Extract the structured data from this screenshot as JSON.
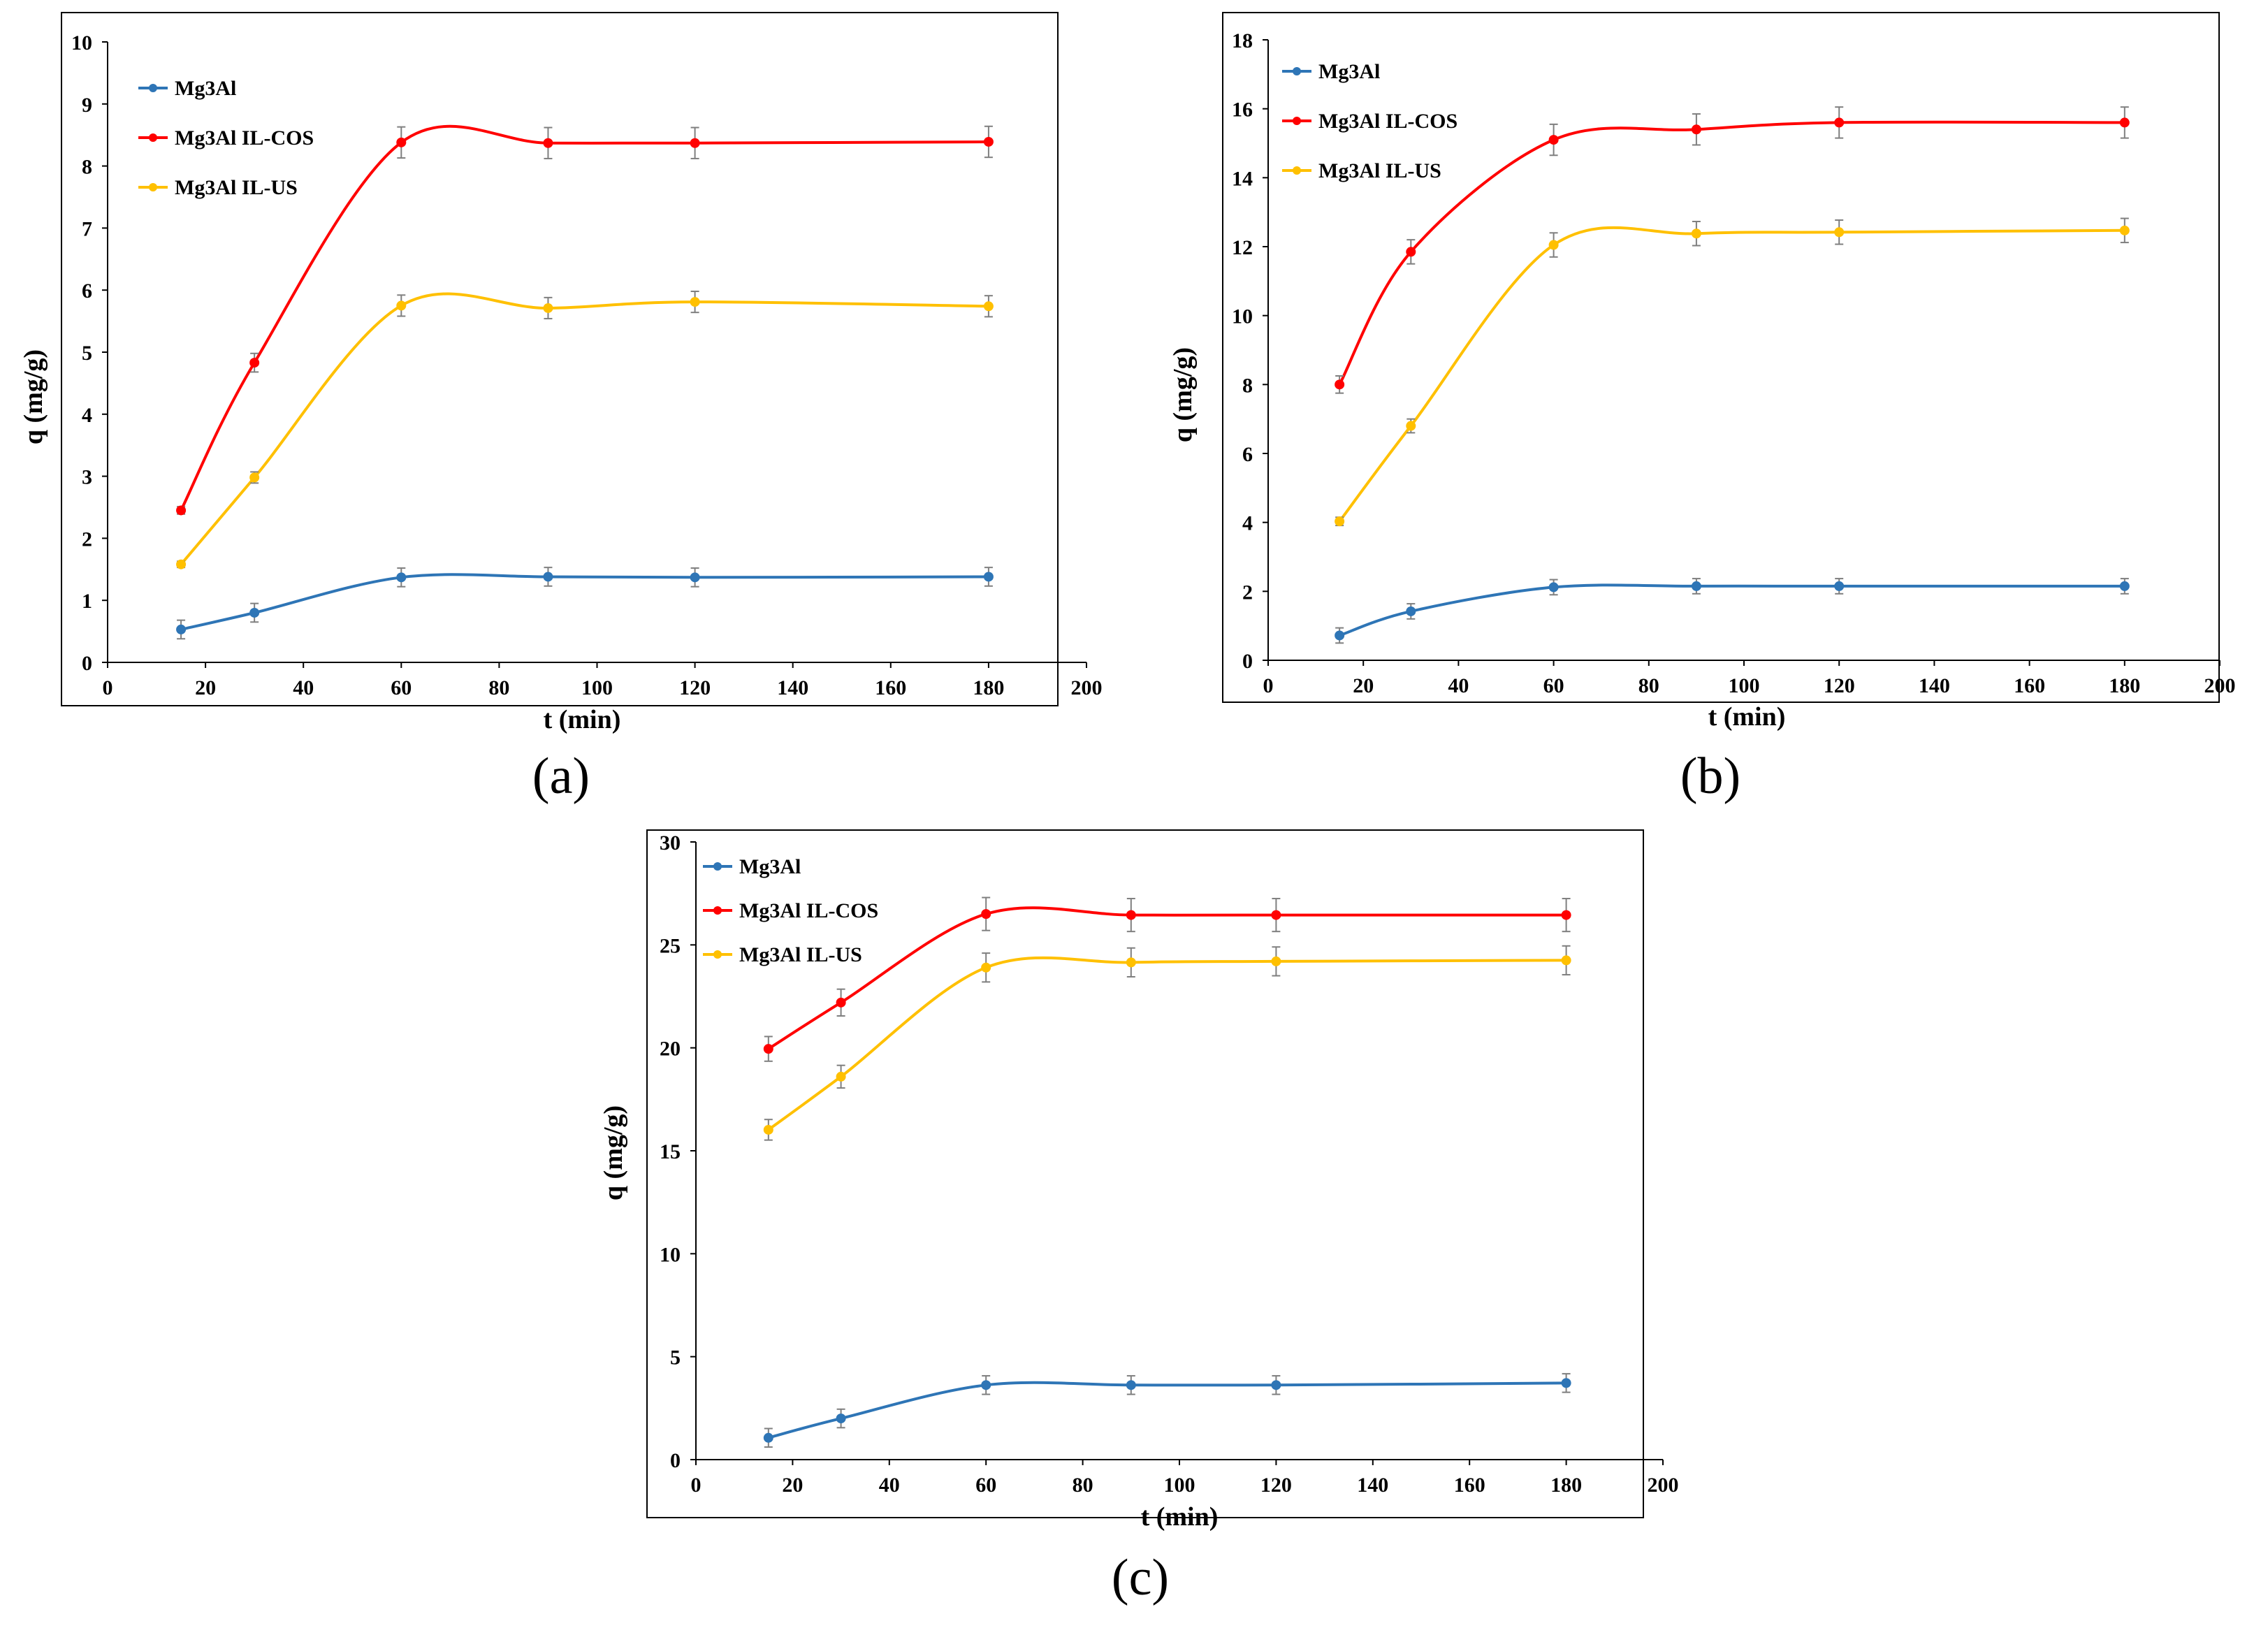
{
  "colors": {
    "Mg3Al": "#2E75B6",
    "Mg3Al IL-COS": "#FF0000",
    "Mg3Al IL-US": "#FFC000",
    "error_bar": "#7F7F7F",
    "frame": "#000000"
  },
  "chart_data": [
    {
      "panel": "(a)",
      "type": "line",
      "xlabel": "t (min)",
      "ylabel": "q (mg/g)",
      "xlim": [
        0,
        200
      ],
      "ylim": [
        0,
        10
      ],
      "xticks": [
        0,
        20,
        40,
        60,
        80,
        100,
        120,
        140,
        160,
        180,
        200
      ],
      "yticks": [
        0,
        1,
        2,
        3,
        4,
        5,
        6,
        7,
        8,
        9,
        10
      ],
      "legend_position": "top-left",
      "x": [
        15,
        30,
        60,
        90,
        120,
        180
      ],
      "series": [
        {
          "name": "Mg3Al",
          "values": [
            0.53,
            0.8,
            1.37,
            1.38,
            1.37,
            1.38
          ],
          "errors": [
            0.15,
            0.15,
            0.15,
            0.15,
            0.15,
            0.15
          ]
        },
        {
          "name": "Mg3Al IL-COS",
          "values": [
            2.45,
            4.83,
            8.38,
            8.37,
            8.37,
            8.39
          ],
          "errors": [
            0.06,
            0.15,
            0.25,
            0.25,
            0.25,
            0.25
          ]
        },
        {
          "name": "Mg3Al IL-US",
          "values": [
            1.58,
            2.98,
            5.75,
            5.71,
            5.81,
            5.74
          ],
          "errors": [
            0.05,
            0.09,
            0.17,
            0.17,
            0.17,
            0.17
          ]
        }
      ]
    },
    {
      "panel": "(b)",
      "type": "line",
      "xlabel": "t (min)",
      "ylabel": "q (mg/g)",
      "xlim": [
        0,
        200
      ],
      "ylim": [
        0,
        18
      ],
      "xticks": [
        0,
        20,
        40,
        60,
        80,
        100,
        120,
        140,
        160,
        180,
        200
      ],
      "yticks": [
        0,
        2,
        4,
        6,
        8,
        10,
        12,
        14,
        16,
        18
      ],
      "legend_position": "top-left",
      "x": [
        15,
        30,
        60,
        90,
        120,
        180
      ],
      "series": [
        {
          "name": "Mg3Al",
          "values": [
            0.72,
            1.42,
            2.12,
            2.15,
            2.15,
            2.15
          ],
          "errors": [
            0.22,
            0.22,
            0.22,
            0.22,
            0.22,
            0.22
          ]
        },
        {
          "name": "Mg3Al IL-COS",
          "values": [
            8.0,
            11.85,
            15.1,
            15.4,
            15.6,
            15.6
          ],
          "errors": [
            0.25,
            0.35,
            0.45,
            0.45,
            0.45,
            0.45
          ]
        },
        {
          "name": "Mg3Al IL-US",
          "values": [
            4.03,
            6.8,
            12.05,
            12.38,
            12.42,
            12.47
          ],
          "errors": [
            0.12,
            0.2,
            0.35,
            0.35,
            0.35,
            0.35
          ]
        }
      ]
    },
    {
      "panel": "(c)",
      "type": "line",
      "xlabel": "t (min)",
      "ylabel": "q (mg/g)",
      "xlim": [
        0,
        200
      ],
      "ylim": [
        0,
        30
      ],
      "xticks": [
        0,
        20,
        40,
        60,
        80,
        100,
        120,
        140,
        160,
        180,
        200
      ],
      "yticks": [
        0,
        5,
        10,
        15,
        20,
        25,
        30
      ],
      "legend_position": "top-left",
      "x": [
        15,
        30,
        60,
        90,
        120,
        180
      ],
      "series": [
        {
          "name": "Mg3Al",
          "values": [
            1.06,
            2.0,
            3.62,
            3.62,
            3.62,
            3.72
          ],
          "errors": [
            0.45,
            0.45,
            0.45,
            0.45,
            0.45,
            0.45
          ]
        },
        {
          "name": "Mg3Al IL-COS",
          "values": [
            19.95,
            22.2,
            26.5,
            26.45,
            26.45,
            26.45
          ],
          "errors": [
            0.6,
            0.65,
            0.8,
            0.8,
            0.8,
            0.8
          ]
        },
        {
          "name": "Mg3Al IL-US",
          "values": [
            16.02,
            18.6,
            23.9,
            24.15,
            24.2,
            24.25
          ],
          "errors": [
            0.5,
            0.55,
            0.7,
            0.7,
            0.7,
            0.7
          ]
        }
      ]
    }
  ]
}
